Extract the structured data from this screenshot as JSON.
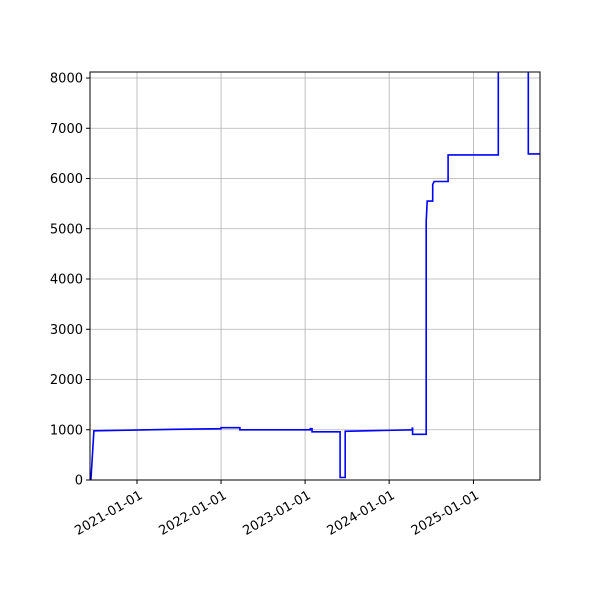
{
  "chart_data": {
    "type": "line",
    "title": "",
    "xlabel": "",
    "ylabel": "",
    "xlim": [
      "2020-06-11",
      "2025-10-17"
    ],
    "ylim": [
      0,
      8120
    ],
    "grid": true,
    "line_color": "#0000ff",
    "x_ticks": [
      "2021-01-01",
      "2022-01-01",
      "2023-01-01",
      "2024-01-01",
      "2025-01-01"
    ],
    "y_ticks": [
      0,
      1000,
      2000,
      3000,
      4000,
      5000,
      6000,
      7000,
      8000
    ],
    "series": [
      {
        "points": [
          [
            "2020-06-15",
            0
          ],
          [
            "2020-06-28",
            980
          ],
          [
            "2020-10-19",
            990
          ],
          [
            "2021-06-15",
            1010
          ],
          [
            "2022-01-01",
            1020
          ],
          [
            "2022-01-01",
            1040
          ],
          [
            "2022-03-24",
            1040
          ],
          [
            "2022-03-24",
            1000
          ],
          [
            "2023-01-23",
            1000
          ],
          [
            "2023-01-23",
            1020
          ],
          [
            "2023-01-31",
            1020
          ],
          [
            "2023-01-31",
            960
          ],
          [
            "2023-06-02",
            960
          ],
          [
            "2023-06-02",
            50
          ],
          [
            "2023-06-24",
            50
          ],
          [
            "2023-06-24",
            970
          ],
          [
            "2024-04-10",
            1000
          ],
          [
            "2024-04-10",
            1030
          ],
          [
            "2024-04-12",
            1030
          ],
          [
            "2024-04-12",
            910
          ],
          [
            "2024-06-10",
            910
          ],
          [
            "2024-06-10",
            5150
          ],
          [
            "2024-06-14",
            5550
          ],
          [
            "2024-07-08",
            5550
          ],
          [
            "2024-07-08",
            5880
          ],
          [
            "2024-07-14",
            5940
          ],
          [
            "2024-09-13",
            5940
          ],
          [
            "2024-09-13",
            6470
          ],
          [
            "2025-04-19",
            6470
          ],
          [
            "2025-04-19",
            8500
          ],
          [
            "2025-08-27",
            8500
          ],
          [
            "2025-08-27",
            6490
          ],
          [
            "2025-10-17",
            6490
          ]
        ]
      }
    ]
  }
}
